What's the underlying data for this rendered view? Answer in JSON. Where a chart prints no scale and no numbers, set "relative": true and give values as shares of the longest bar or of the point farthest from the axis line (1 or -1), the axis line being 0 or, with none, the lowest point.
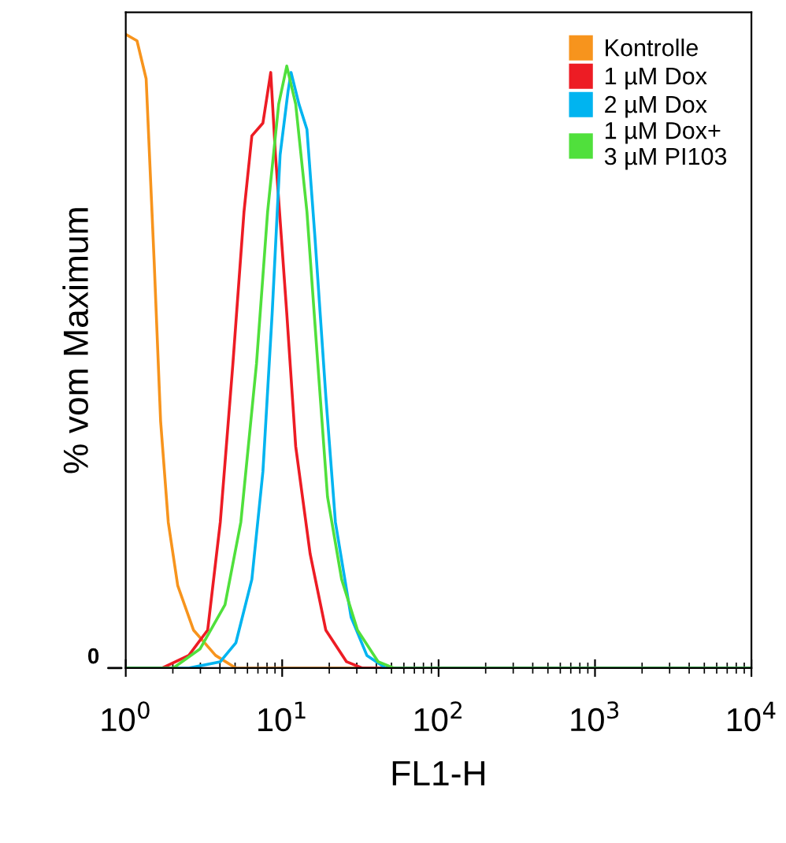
{
  "chart_data": {
    "type": "line",
    "relative": true,
    "xlabel": "FL1-H",
    "ylabel": "% vom Maximum",
    "log": "x",
    "xlim": [
      1,
      10000
    ],
    "xticks": [
      {
        "value": 1,
        "label": "10$^{0}$"
      },
      {
        "value": 10,
        "label": "10$^{1}$"
      },
      {
        "value": 100,
        "label": "10$^{2}$"
      },
      {
        "value": 1000,
        "label": "10$^{3}$"
      },
      {
        "value": 10000,
        "label": "10$^{4}$"
      }
    ],
    "grid": false,
    "legend": "top right",
    "annotations": [
      "0"
    ],
    "series": [
      {
        "name": "Kontrolle",
        "color": "#f7941d",
        "x": [
          1,
          1.18,
          1.35,
          1.52,
          1.67,
          1.87,
          2.15,
          2.71,
          3.75,
          5.06,
          10000
        ],
        "values": [
          1,
          0.99,
          0.93,
          0.64,
          0.39,
          0.23,
          0.13,
          0.06,
          0.02,
          0,
          0
        ]
      },
      {
        "name": "1 µM Dox",
        "color": "#ed1c24",
        "x": [
          1,
          1.71,
          2.53,
          3.34,
          4.02,
          4.84,
          5.7,
          6.4,
          7.53,
          8.45,
          9.06,
          10.7,
          12.2,
          15.1,
          19,
          25.8,
          32.5,
          10000
        ],
        "values": [
          0,
          0,
          0.02,
          0.06,
          0.23,
          0.48,
          0.72,
          0.84,
          0.86,
          0.94,
          0.81,
          0.56,
          0.35,
          0.18,
          0.06,
          0.01,
          0,
          0
        ]
      },
      {
        "name": "2 µM Dox",
        "color": "#00b4f0",
        "x": [
          1,
          2.53,
          4.02,
          5.06,
          6.4,
          7.53,
          8.63,
          9.7,
          10.9,
          11.4,
          12.8,
          14.4,
          16.2,
          19,
          21.9,
          27.6,
          34.8,
          46,
          10000
        ],
        "values": [
          0,
          0,
          0.01,
          0.04,
          0.14,
          0.31,
          0.56,
          0.81,
          0.91,
          0.94,
          0.89,
          0.85,
          0.68,
          0.43,
          0.23,
          0.08,
          0.02,
          0,
          0
        ]
      },
      {
        "name": "1 µM Dox+\n3 µM PI103",
        "color": "#50e03c",
        "x": [
          1,
          2.01,
          2.98,
          4.31,
          5.44,
          6.85,
          8.07,
          9.5,
          10.7,
          12.2,
          14.4,
          16.9,
          19.5,
          24,
          30.3,
          41.1,
          51.7,
          10000
        ],
        "values": [
          0,
          0,
          0.03,
          0.1,
          0.23,
          0.48,
          0.72,
          0.89,
          0.95,
          0.89,
          0.72,
          0.48,
          0.27,
          0.14,
          0.06,
          0.01,
          0,
          0
        ]
      }
    ]
  }
}
